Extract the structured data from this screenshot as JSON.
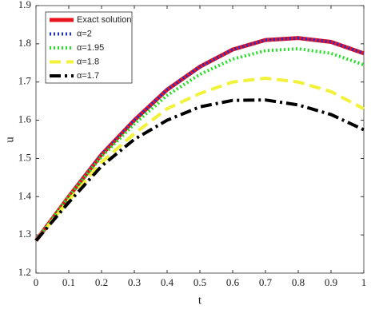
{
  "chart_data": {
    "type": "line",
    "xlabel": "t",
    "ylabel": "u",
    "x": [
      0,
      0.1,
      0.2,
      0.3,
      0.4,
      0.5,
      0.6,
      0.7,
      0.8,
      0.9,
      1
    ],
    "xlim": [
      0,
      1
    ],
    "xticks": [
      0,
      0.1,
      0.2,
      0.3,
      0.4,
      0.5,
      0.6,
      0.7,
      0.8,
      0.9,
      1
    ],
    "ylim": [
      1.2,
      1.9
    ],
    "yticks": [
      1.2,
      1.3,
      1.4,
      1.5,
      1.6,
      1.7,
      1.8,
      1.9
    ],
    "legend": "upper left",
    "series": [
      {
        "name": "Exact solution",
        "color": "#e8141e",
        "style": "solid",
        "values": [
          1.285,
          1.4,
          1.51,
          1.6,
          1.68,
          1.74,
          1.785,
          1.81,
          1.815,
          1.805,
          1.775
        ]
      },
      {
        "name": "α=2",
        "color": "#1f2fd6",
        "style": "dotted",
        "values": [
          1.285,
          1.4,
          1.51,
          1.6,
          1.68,
          1.74,
          1.785,
          1.81,
          1.815,
          1.805,
          1.775
        ]
      },
      {
        "name": "α=1.95",
        "color": "#22e022",
        "style": "dotted",
        "values": [
          1.285,
          1.4,
          1.505,
          1.59,
          1.665,
          1.72,
          1.76,
          1.782,
          1.787,
          1.775,
          1.745
        ]
      },
      {
        "name": "α=1.8",
        "color": "#f2f23a",
        "style": "dashed",
        "values": [
          1.285,
          1.39,
          1.49,
          1.565,
          1.63,
          1.67,
          1.7,
          1.71,
          1.7,
          1.675,
          1.63
        ]
      },
      {
        "name": "α=1.7",
        "color": "#000000",
        "style": "dashdot",
        "values": [
          1.285,
          1.385,
          1.48,
          1.55,
          1.6,
          1.635,
          1.652,
          1.653,
          1.64,
          1.615,
          1.575
        ]
      }
    ]
  }
}
